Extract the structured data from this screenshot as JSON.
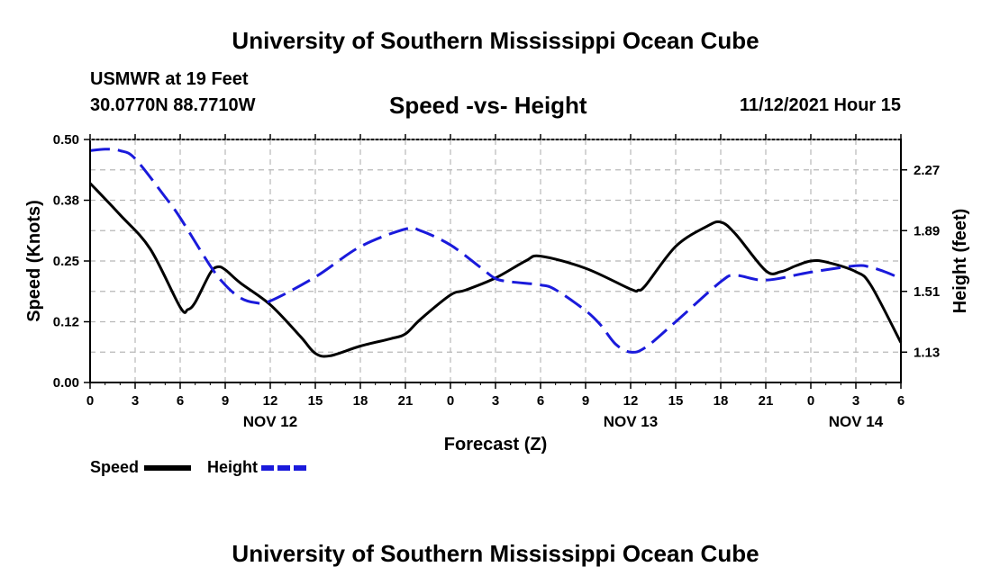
{
  "title": "University of Southern Mississippi Ocean Cube",
  "footer_title": "University of Southern Mississippi Ocean Cube",
  "station": "USMWR at 19 Feet",
  "coords": "30.0770N  88.7710W",
  "subtitle": "Speed -vs- Height",
  "datetime": "11/12/2021 Hour 15",
  "colors": {
    "speed": "#000000",
    "height": "#1a1adb",
    "grid": "#b8b8b8"
  },
  "chart_data": {
    "type": "line",
    "title": "Speed -vs- Height",
    "xlabel": "Forecast (Z)",
    "ylabel": "Speed (Knots)",
    "y2label": "Height (feet)",
    "xlim": [
      0,
      54
    ],
    "x_ticks": [
      0,
      3,
      6,
      9,
      12,
      15,
      18,
      21,
      24,
      27,
      30,
      33,
      36,
      39,
      42,
      45,
      48,
      51,
      54
    ],
    "x_tick_labels": [
      "0",
      "3",
      "6",
      "9",
      "12",
      "15",
      "18",
      "21",
      "0",
      "3",
      "6",
      "9",
      "12",
      "15",
      "18",
      "21",
      "0",
      "3",
      "6"
    ],
    "day_labels": [
      {
        "x": 12,
        "label": "NOV 12"
      },
      {
        "x": 36,
        "label": "NOV 13"
      },
      {
        "x": 51,
        "label": "NOV 14"
      }
    ],
    "ylim": [
      0,
      0.5
    ],
    "y_ticks": [
      0,
      0.125,
      0.25,
      0.375,
      0.5
    ],
    "y_tick_labels": [
      "0.00",
      "0.12",
      "0.25",
      "0.38",
      "0.50"
    ],
    "y2lim": [
      0.94,
      2.46
    ],
    "y2_ticks": [
      1.13,
      1.51,
      1.89,
      2.27
    ],
    "y2_tick_labels": [
      "1.13",
      "1.51",
      "1.89",
      "2.27"
    ],
    "grid": true,
    "legend_position": "bottom-left",
    "series": [
      {
        "name": "Speed",
        "axis": "left",
        "style": "solid",
        "x": [
          0,
          2,
          4,
          6,
          6.5,
          7,
          8,
          8.5,
          9,
          10,
          12,
          14,
          15,
          16,
          18,
          20,
          21,
          22,
          24,
          25,
          27,
          29,
          30,
          33,
          36,
          36.5,
          37,
          39,
          41,
          42,
          43,
          45,
          46,
          47,
          48,
          49,
          51,
          52,
          54
        ],
        "y": [
          0.41,
          0.345,
          0.275,
          0.155,
          0.15,
          0.165,
          0.225,
          0.238,
          0.232,
          0.205,
          0.16,
          0.095,
          0.06,
          0.055,
          0.075,
          0.09,
          0.1,
          0.13,
          0.18,
          0.19,
          0.215,
          0.25,
          0.26,
          0.235,
          0.192,
          0.19,
          0.2,
          0.28,
          0.32,
          0.33,
          0.305,
          0.23,
          0.228,
          0.24,
          0.25,
          0.248,
          0.228,
          0.2,
          0.082
        ]
      },
      {
        "name": "Height",
        "axis": "right",
        "style": "dashed",
        "x": [
          0,
          1,
          2,
          3,
          5,
          6,
          8,
          9,
          10,
          11,
          12,
          15,
          18,
          21,
          22,
          24,
          26,
          27,
          28,
          30,
          31,
          33,
          34,
          35,
          36,
          37,
          39,
          42,
          43,
          45,
          48,
          51,
          52,
          53,
          54
        ],
        "y": [
          2.39,
          2.4,
          2.39,
          2.34,
          2.1,
          1.97,
          1.67,
          1.55,
          1.47,
          1.44,
          1.45,
          1.6,
          1.79,
          1.9,
          1.89,
          1.8,
          1.66,
          1.59,
          1.57,
          1.55,
          1.52,
          1.39,
          1.3,
          1.18,
          1.13,
          1.16,
          1.32,
          1.57,
          1.61,
          1.58,
          1.63,
          1.67,
          1.66,
          1.63,
          1.59
        ]
      }
    ]
  },
  "legend": {
    "speed": "Speed",
    "height": "Height"
  }
}
